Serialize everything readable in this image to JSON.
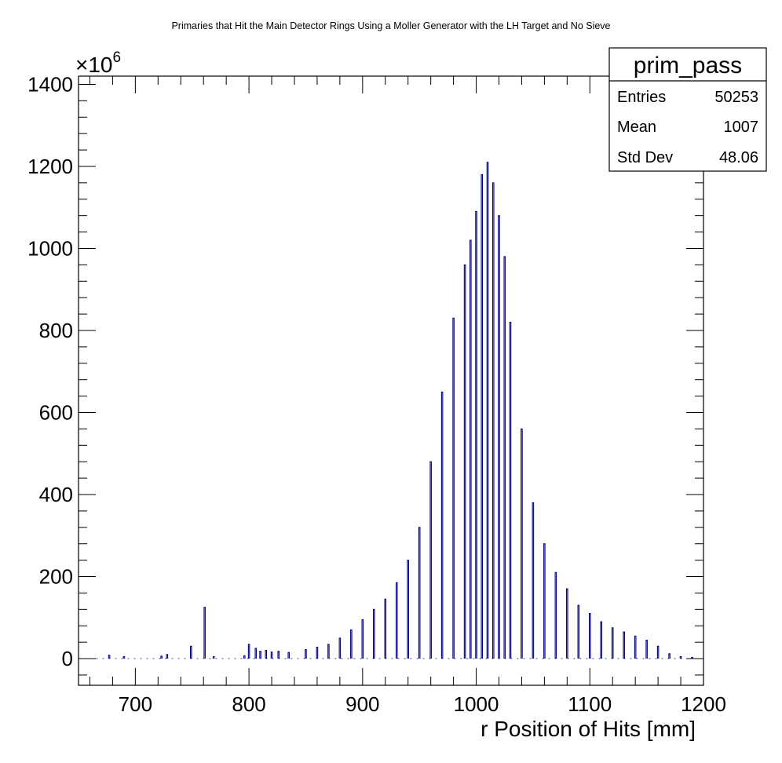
{
  "chart_data": {
    "type": "bar",
    "style": "histogram",
    "title": "Primaries that Hit the Main Detector Rings Using a Moller Generator with the LH Target and No Sieve",
    "xlabel": "r Position of Hits [mm]",
    "ylabel": "",
    "y_multiplier_label": "×10",
    "y_multiplier_exponent": "6",
    "xlim": [
      650,
      1200
    ],
    "ylim": [
      -65,
      1420
    ],
    "x_ticks": [
      "700",
      "800",
      "900",
      "1000",
      "1100",
      "1200"
    ],
    "y_ticks": [
      "0",
      "200",
      "400",
      "600",
      "800",
      "1000",
      "1200",
      "1400"
    ],
    "bin_width": 1,
    "series": [
      {
        "color": "#000080",
        "x_centers": [
          677,
          690,
          723,
          728,
          749,
          761,
          769,
          796,
          800,
          806,
          810,
          815,
          820,
          826,
          835,
          850,
          860,
          870,
          880,
          890,
          900,
          910,
          920,
          930,
          940,
          950,
          960,
          970,
          980,
          990,
          995,
          1000,
          1005,
          1010,
          1015,
          1020,
          1025,
          1030,
          1040,
          1050,
          1060,
          1070,
          1080,
          1090,
          1100,
          1110,
          1120,
          1130,
          1140,
          1150,
          1160,
          1170,
          1180,
          1190
        ],
        "values": [
          8,
          5,
          6,
          10,
          30,
          125,
          5,
          7,
          35,
          25,
          18,
          20,
          16,
          18,
          15,
          22,
          28,
          35,
          50,
          70,
          95,
          120,
          145,
          185,
          240,
          320,
          480,
          650,
          830,
          960,
          1020,
          1090,
          1180,
          1210,
          1160,
          1080,
          980,
          820,
          560,
          380,
          280,
          210,
          170,
          130,
          110,
          90,
          75,
          65,
          55,
          45,
          30,
          12,
          5,
          3
        ]
      }
    ],
    "stats_box": {
      "name": "prim_pass",
      "rows": [
        {
          "label": "Entries",
          "value": "50253"
        },
        {
          "label": "Mean",
          "value": "1007"
        },
        {
          "label": "Std Dev",
          "value": "48.06"
        }
      ]
    }
  }
}
